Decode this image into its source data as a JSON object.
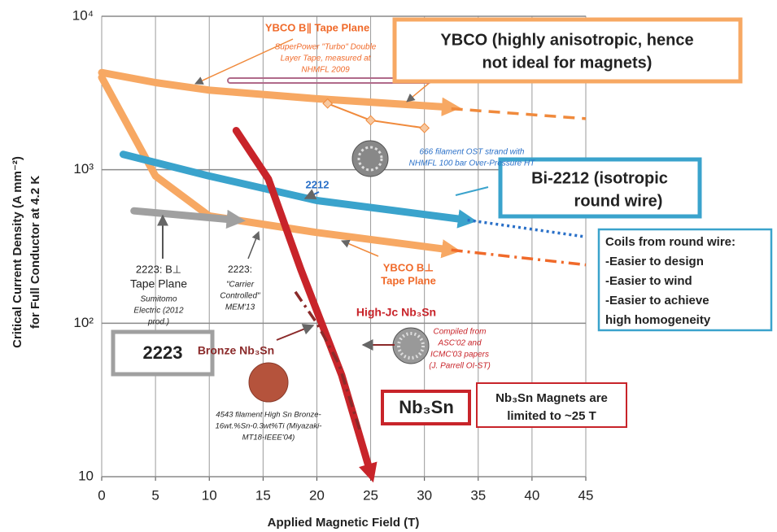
{
  "chart_data": {
    "type": "line",
    "x_label": "Applied Magnetic Field (T)",
    "y_label": [
      "Critical Current Density (A mm⁻²)",
      "for Full Conductor at 4.2 K"
    ],
    "log_y": true,
    "grid": true,
    "xlim": [
      0,
      45
    ],
    "ylim": [
      10,
      10000
    ],
    "xticks": [
      0,
      5,
      10,
      15,
      20,
      25,
      30,
      35,
      40,
      45
    ],
    "yticks": [
      10,
      {
        "value": 100,
        "label": "10²"
      },
      {
        "value": 1000,
        "label": "10³"
      },
      {
        "value": 10000,
        "label": "10⁴"
      }
    ],
    "series": [
      {
        "color": "#f7a863",
        "style": "thick-arrow",
        "x": [
          0,
          5,
          10,
          20,
          32.5
        ],
        "values": [
          4300,
          3700,
          3300,
          2900,
          2550
        ]
      },
      {
        "color": "#f08a3c",
        "style": "dashed",
        "x": [
          32.5,
          45
        ],
        "values": [
          2500,
          2150
        ]
      },
      {
        "color": "#f7a863",
        "style": "thick-arrow",
        "x": [
          0,
          5,
          10,
          20,
          32.5
        ],
        "values": [
          4000,
          910,
          500,
          390,
          300
        ]
      },
      {
        "color": "#f06a2a",
        "style": "dash-dot",
        "x": [
          32.5,
          45
        ],
        "values": [
          300,
          240
        ]
      },
      {
        "color": "#3aa3cc",
        "style": "thick-arrow",
        "x": [
          2,
          10,
          20,
          34
        ],
        "values": [
          1260,
          910,
          630,
          470
        ]
      },
      {
        "color": "#2a70c8",
        "style": "dotted",
        "x": [
          34,
          45
        ],
        "values": [
          470,
          365
        ]
      },
      {
        "color": "#c8242a",
        "style": "thick-arrow",
        "x": [
          12.5,
          15.5,
          18.5,
          22.3,
          25
        ],
        "values": [
          1800,
          870,
          225,
          46,
          10.5
        ]
      },
      {
        "color": "#a0a0a0",
        "style": "thick-arrow",
        "x": [
          3,
          12.5
        ],
        "values": [
          540,
          470
        ]
      },
      {
        "color": "#8b2a2a",
        "style": "dash-dot",
        "x": [
          18,
          20,
          22,
          24
        ],
        "values": [
          160,
          100,
          55,
          20
        ]
      },
      {
        "color": "#f08a3c",
        "style": "thin",
        "x": [
          21,
          25,
          30
        ],
        "values": [
          2700,
          2100,
          1870
        ]
      }
    ],
    "annotations": [
      "YBCO B∥ Tape Plane",
      "SuperPower \"Turbo\" Double",
      "Layer Tape, measured at",
      "NHMFL 2009",
      "YBCO (highly anisotropic, hence",
      "not ideal for magnets)",
      "2212",
      "666 filament OST strand with",
      "NHMFL 100 bar Over-Pressure HT",
      "Bi-2212 (isotropic",
      "round wire)",
      "Coils from round wire:",
      "-Easier to design",
      "-Easier to wind",
      "-Easier to achieve",
      "high homogeneity",
      "YBCO B⊥",
      "Tape Plane",
      "2223: B⊥",
      "Tape Plane",
      "Sumitomo",
      "Electric (2012",
      "prod.)",
      "2223:",
      "\"Carrier",
      "Controlled\"",
      "MEM'13",
      "High-Jc Nb₃Sn",
      "Compiled from",
      "ASC'02 and",
      "ICMC'03 papers",
      "(J. Parrell OI-ST)",
      "Bronze Nb₃Sn",
      "2223",
      "4543 filament High Sn Bronze-",
      "16wt.%Sn-0.3wt%Ti (Miyazaki-",
      "MT18-IEEE'04)",
      "Nb₃Sn",
      "Nb₃Sn Magnets are",
      "limited to ~25 T"
    ]
  }
}
